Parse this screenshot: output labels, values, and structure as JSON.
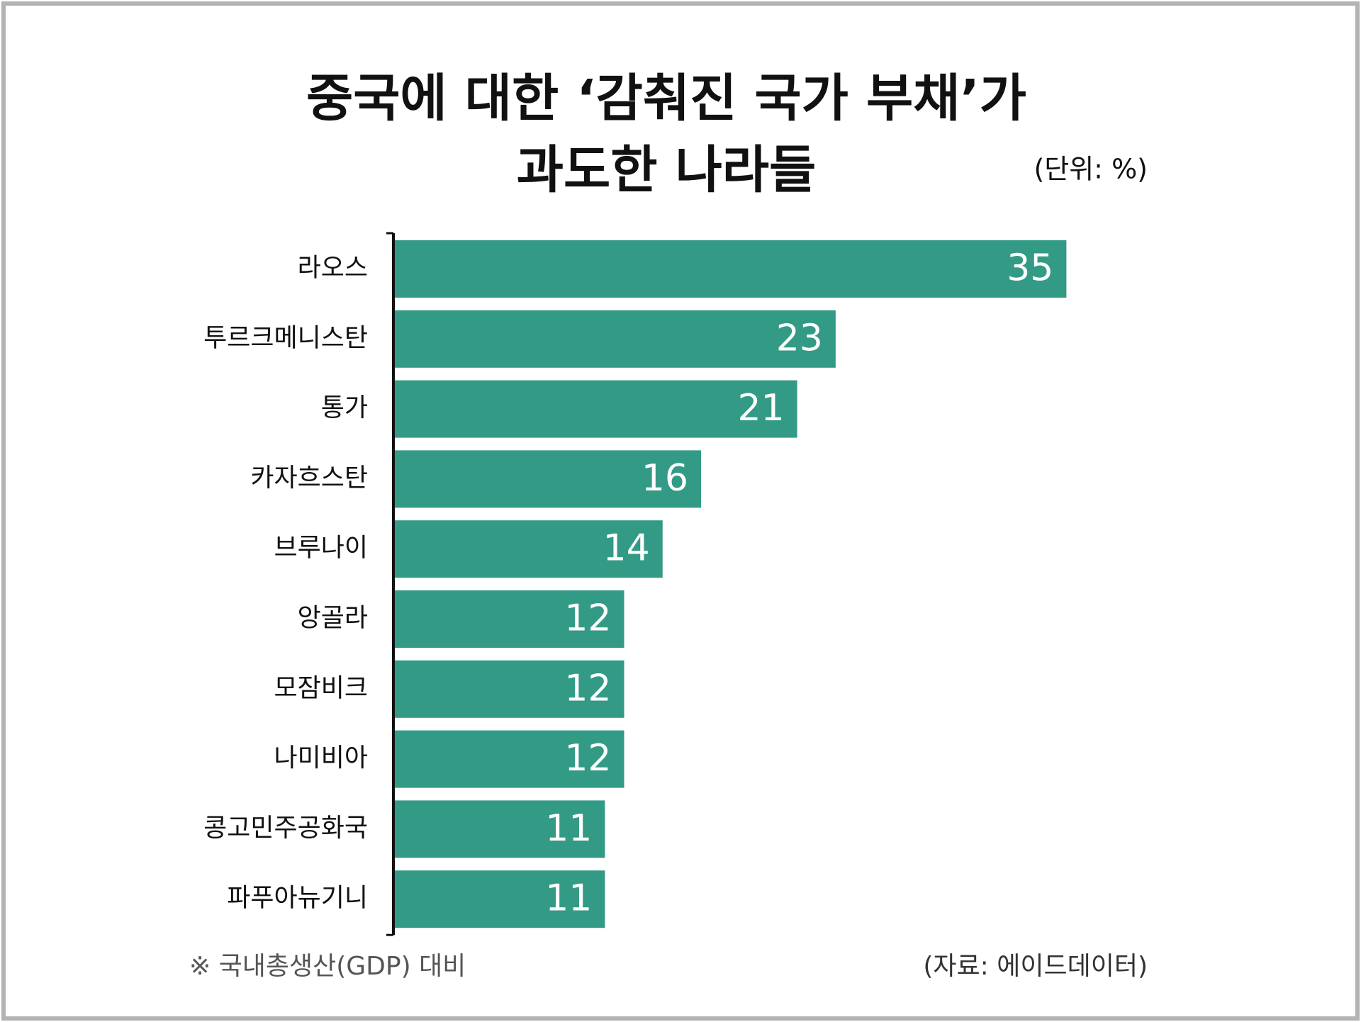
{
  "chart_data": {
    "type": "barh",
    "title": [
      "중국에 대한 ‘감춰진 국가 부채’가",
      "과도한 나라들"
    ],
    "unit": "(단위: %)",
    "categories": [
      "라오스",
      "투르크메니스탄",
      "통가",
      "카자흐스탄",
      "브루나이",
      "앙골라",
      "모잠비크",
      "나미비아",
      "콩고민주공화국",
      "파푸아뉴기니"
    ],
    "values": [
      35,
      23,
      21,
      16,
      14,
      12,
      12,
      12,
      11,
      11
    ],
    "color": "#339a85",
    "xlim": [
      0,
      40
    ],
    "note": "※ 국내총생산(GDP) 대비",
    "source": "(자료: 에이드데이터)"
  }
}
